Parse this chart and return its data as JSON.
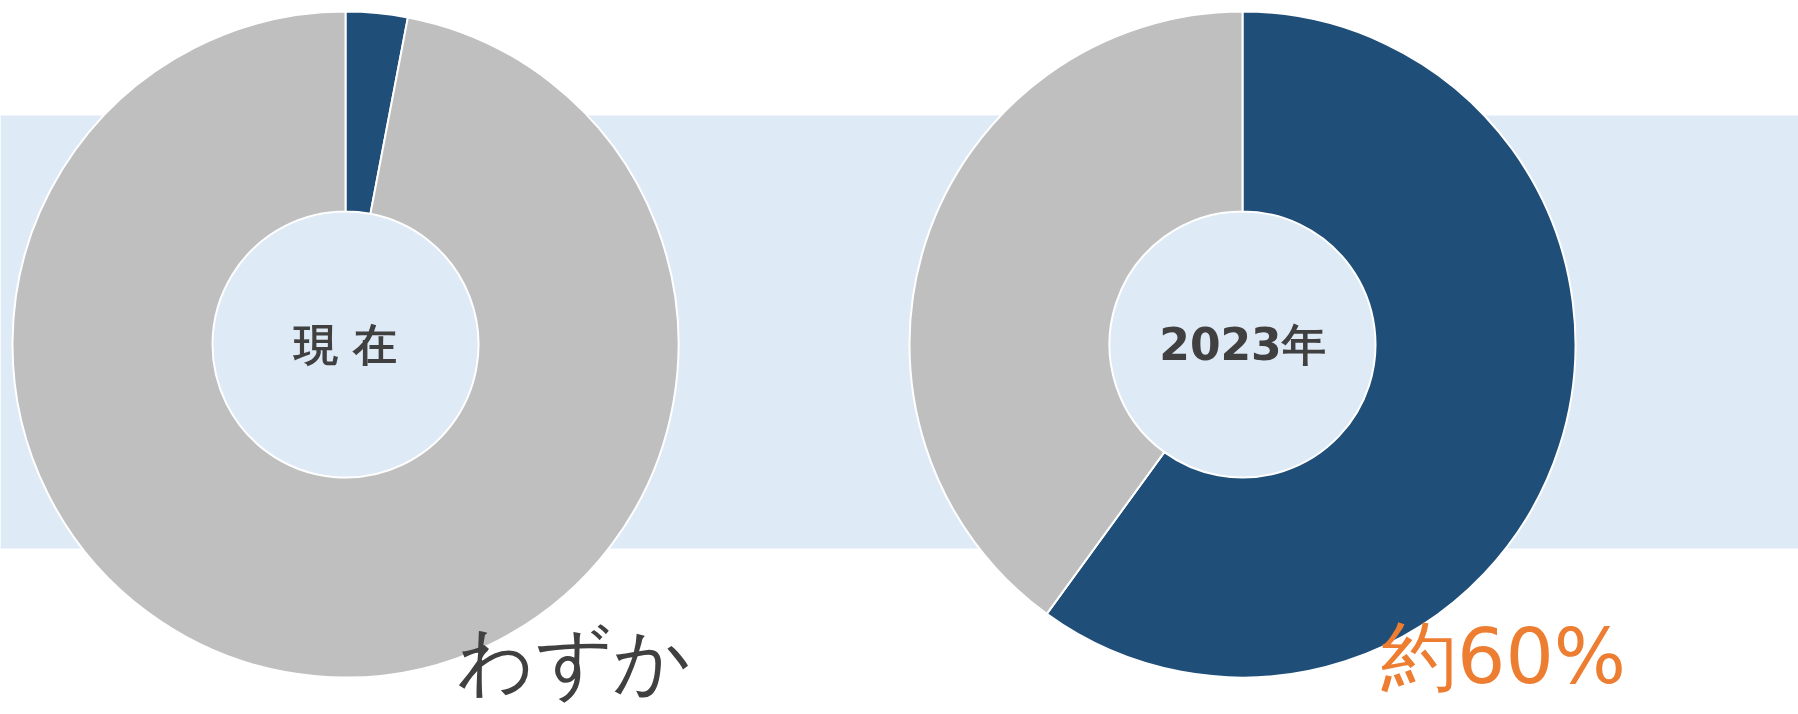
{
  "chart_data": [
    {
      "type": "donut",
      "title": "現 在",
      "categories": [
        null,
        null
      ],
      "values": [
        3,
        97
      ],
      "colors": [
        "#1f4e79",
        "#bfbfbf"
      ],
      "annotations": [
        "わずか"
      ]
    },
    {
      "type": "donut",
      "title": "2023年",
      "categories": [
        null,
        null
      ],
      "values": [
        60,
        40
      ],
      "colors": [
        "#1f4e79",
        "#bfbfbf"
      ],
      "annotations": [
        "約60%"
      ]
    }
  ]
}
